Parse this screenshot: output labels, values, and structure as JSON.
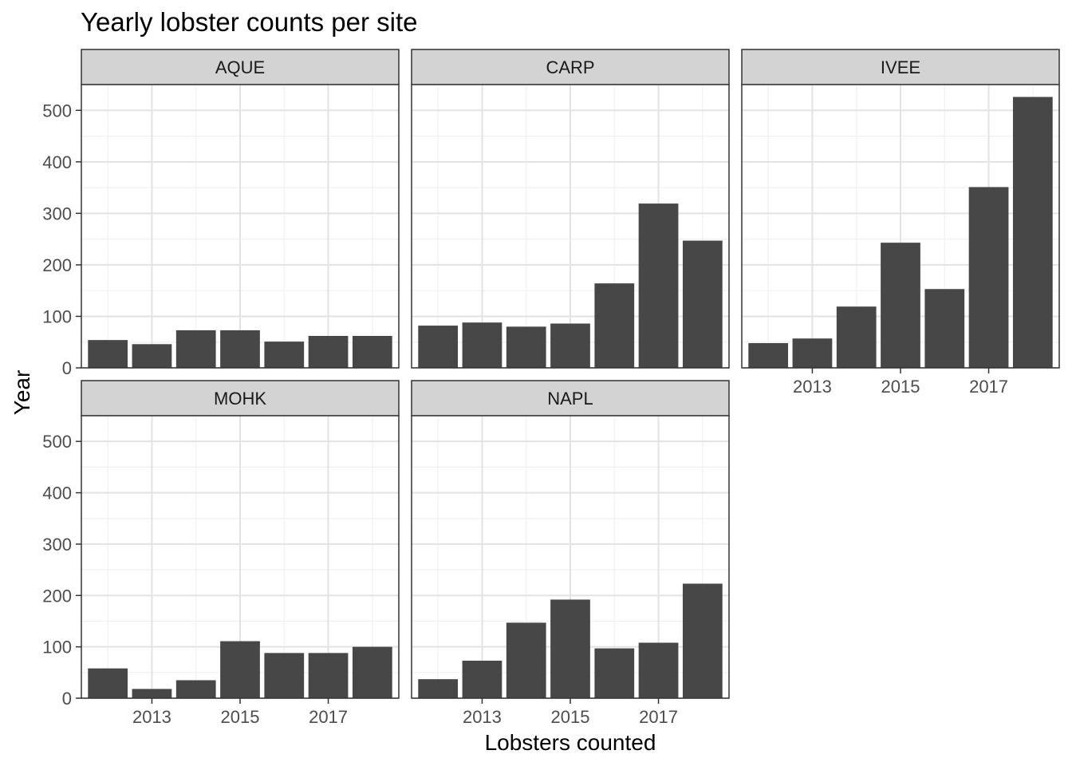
{
  "chart_data": {
    "type": "bar",
    "title": "Yearly lobster counts per site",
    "xlabel": "Lobsters counted",
    "ylabel": "Year",
    "x": [
      2012,
      2013,
      2014,
      2015,
      2016,
      2017,
      2018
    ],
    "x_ticks": [
      2013,
      2015,
      2017
    ],
    "y_ticks": [
      0,
      100,
      200,
      300,
      400,
      500
    ],
    "ylim": [
      0,
      550
    ],
    "grid": true,
    "bar_color": "#474747",
    "strip_color": "#d3d3d3",
    "facets": [
      {
        "name": "AQUE",
        "values": [
          54,
          46,
          73,
          73,
          51,
          62,
          62
        ]
      },
      {
        "name": "CARP",
        "values": [
          82,
          88,
          80,
          86,
          164,
          319,
          247
        ]
      },
      {
        "name": "IVEE",
        "values": [
          48,
          57,
          119,
          243,
          153,
          351,
          526
        ]
      },
      {
        "name": "MOHK",
        "values": [
          58,
          18,
          35,
          111,
          88,
          88,
          100
        ]
      },
      {
        "name": "NAPL",
        "values": [
          37,
          73,
          147,
          192,
          97,
          108,
          223
        ]
      }
    ]
  }
}
